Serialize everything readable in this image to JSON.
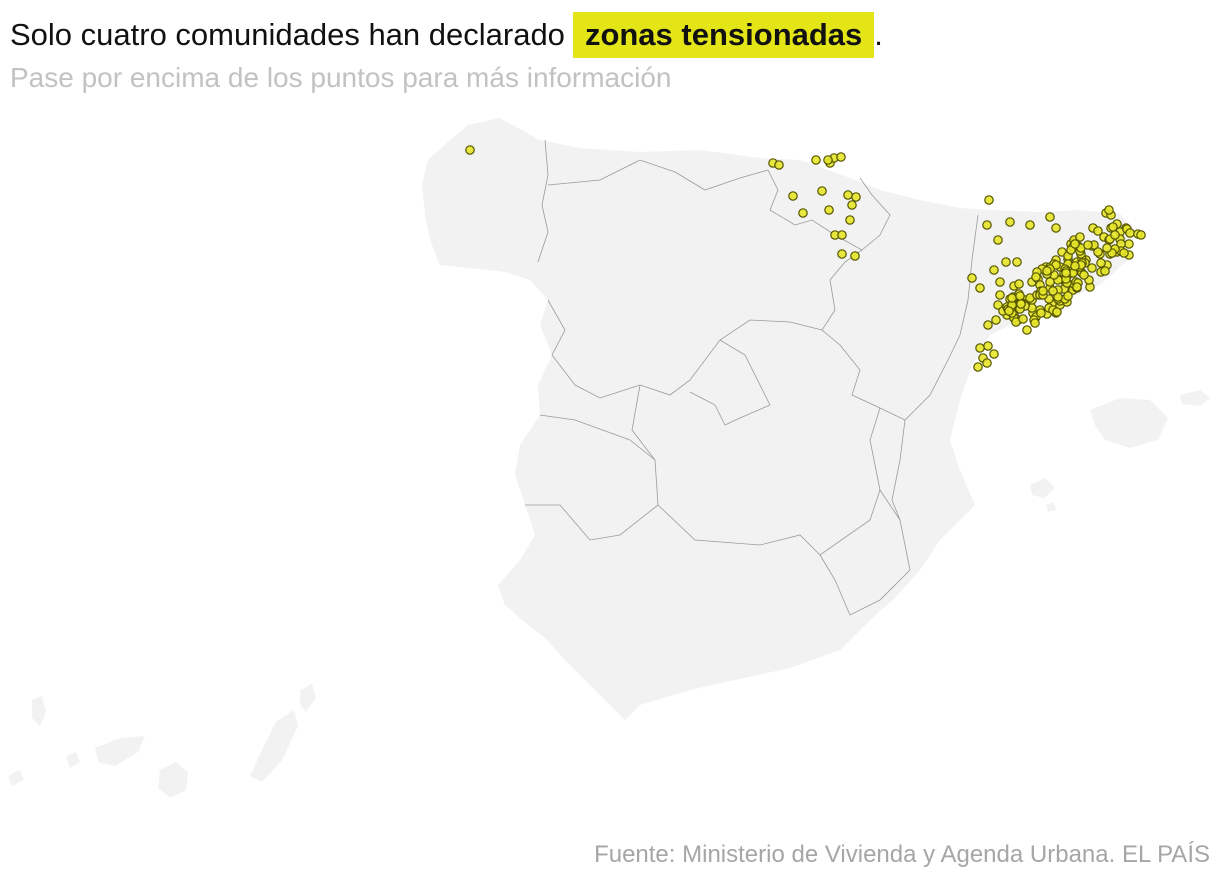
{
  "headline": {
    "text_before": "Solo cuatro comunidades han declarado",
    "highlight": "zonas tensionadas",
    "text_after": "."
  },
  "subtitle": "Pase por encima de los puntos para más información",
  "source": "Fuente: Ministerio de Vivienda y Agenda Urbana. EL PAÍS",
  "colors": {
    "highlight": "#e4e517",
    "dot_fill": "#e6e62a",
    "dot_stroke": "#555500",
    "land": "#f2f2f2",
    "border": "#9a9a9a"
  },
  "map": {
    "regions_with_zones": [
      "Cataluña",
      "País Vasco",
      "Navarra",
      "Galicia"
    ],
    "marker_count_approx": 200
  }
}
